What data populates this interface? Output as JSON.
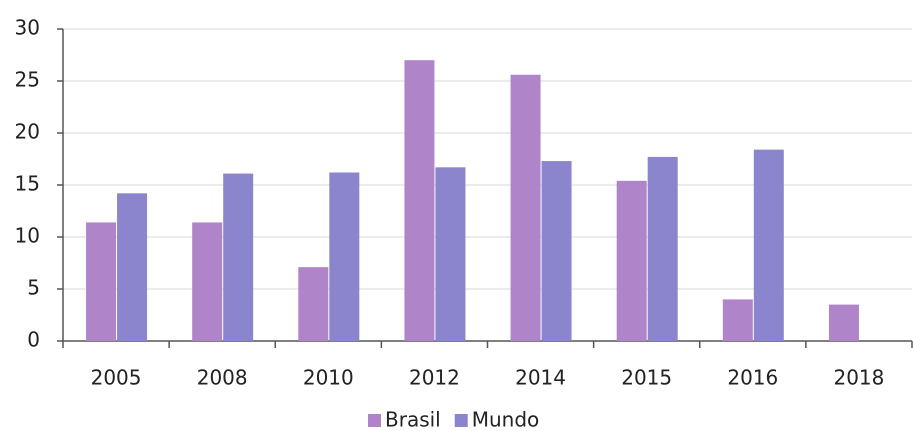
{
  "chart_data": {
    "type": "bar",
    "categories": [
      "2005",
      "2008",
      "2010",
      "2012",
      "2014",
      "2015",
      "2016",
      "2018"
    ],
    "series": [
      {
        "name": "Brasil",
        "color": "#b084c8",
        "values": [
          11.4,
          11.4,
          7.1,
          27,
          25.6,
          15.4,
          4,
          3.5
        ]
      },
      {
        "name": "Mundo",
        "color": "#8a85cc",
        "values": [
          14.2,
          16.1,
          16.2,
          16.7,
          17.3,
          17.7,
          18.4,
          null
        ]
      }
    ],
    "ylim": [
      0,
      30
    ],
    "yticks": [
      0,
      5,
      10,
      15,
      20,
      25,
      30
    ],
    "grid": true,
    "legend": "bottom"
  }
}
